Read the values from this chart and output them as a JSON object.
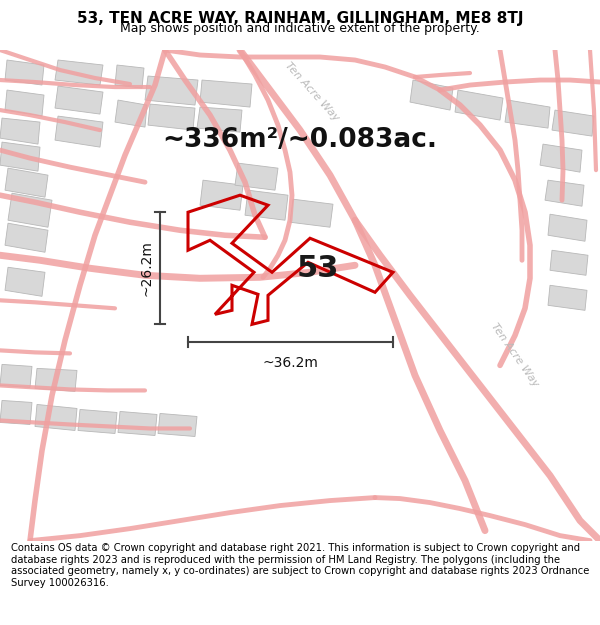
{
  "title": "53, TEN ACRE WAY, RAINHAM, GILLINGHAM, ME8 8TJ",
  "subtitle": "Map shows position and indicative extent of the property.",
  "footer": "Contains OS data © Crown copyright and database right 2021. This information is subject to Crown copyright and database rights 2023 and is reproduced with the permission of HM Land Registry. The polygons (including the associated geometry, namely x, y co-ordinates) are subject to Crown copyright and database rights 2023 Ordnance Survey 100026316.",
  "area_text": "~336m²/~0.083ac.",
  "dim_h": "~26.2m",
  "dim_w": "~36.2m",
  "label_53": "53",
  "bg_color": "#ffffff",
  "map_bg": "#ffffff",
  "road_color": "#f0a0a0",
  "building_fill": "#d8d8d8",
  "building_edge": "#b8b8b8",
  "plot_color": "#cc0000",
  "street_label_color": "#bbbbbb",
  "dim_color": "#444444",
  "title_fontsize": 11,
  "subtitle_fontsize": 9,
  "area_fontsize": 19,
  "dim_fontsize": 10,
  "label_fontsize": 22,
  "footer_fontsize": 7.2
}
